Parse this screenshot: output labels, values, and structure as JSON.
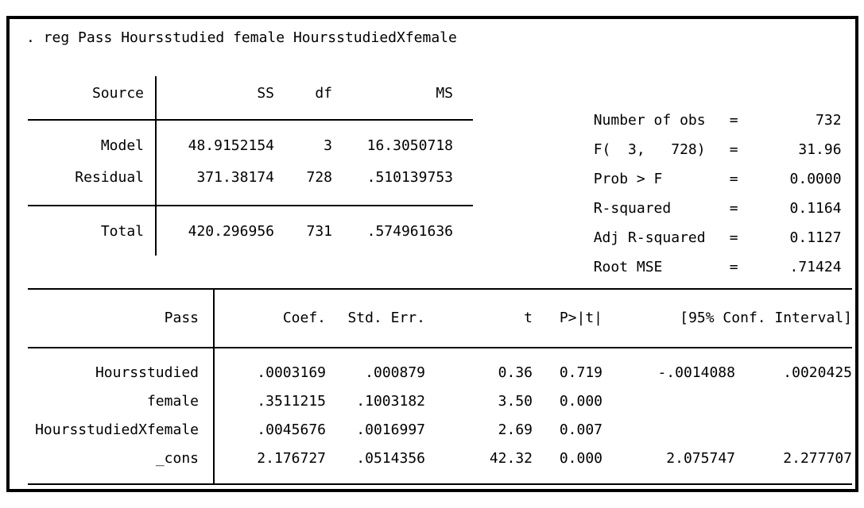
{
  "command": ". reg Pass Hoursstudied female HoursstudiedXfemale",
  "anova": {
    "headers": {
      "source": "Source",
      "ss": "SS",
      "df": "df",
      "ms": "MS"
    },
    "rows": [
      {
        "source": "Model",
        "ss": "48.9152154",
        "df": "3",
        "ms": "16.3050718"
      },
      {
        "source": "Residual",
        "ss": "371.38174",
        "df": "728",
        "ms": ".510139753"
      }
    ],
    "total": {
      "source": "Total",
      "ss": "420.296956",
      "df": "731",
      "ms": ".574961636"
    }
  },
  "stats": [
    {
      "label": "Number of obs",
      "eq": "=",
      "value": "732"
    },
    {
      "label": "F(  3,   728)",
      "eq": "=",
      "value": "31.96"
    },
    {
      "label": "Prob > F",
      "eq": "=",
      "value": "0.0000"
    },
    {
      "label": "R-squared",
      "eq": "=",
      "value": "0.1164"
    },
    {
      "label": "Adj R-squared",
      "eq": "=",
      "value": "0.1127"
    },
    {
      "label": "Root MSE",
      "eq": "=",
      "value": ".71424"
    }
  ],
  "coef_table": {
    "depvar": "Pass",
    "headers": {
      "coef": "Coef.",
      "stderr": "Std. Err.",
      "t": "t",
      "p": "P>|t|",
      "ci": "[95% Conf. Interval]"
    },
    "rows": [
      {
        "var": "Hoursstudied",
        "coef": ".0003169",
        "stderr": ".000879",
        "t": "0.36",
        "p": "0.719",
        "ci_low": "-.0014088",
        "ci_high": ".0020425"
      },
      {
        "var": "female",
        "coef": ".3511215",
        "stderr": ".1003182",
        "t": "3.50",
        "p": "0.000",
        "ci_low": "",
        "ci_high": ""
      },
      {
        "var": "HoursstudiedXfemale",
        "coef": ".0045676",
        "stderr": ".0016997",
        "t": "2.69",
        "p": "0.007",
        "ci_low": "",
        "ci_high": ""
      },
      {
        "var": "_cons",
        "coef": "2.176727",
        "stderr": ".0514356",
        "t": "42.32",
        "p": "0.000",
        "ci_low": "2.075747",
        "ci_high": "2.277707"
      }
    ]
  },
  "colors": {
    "text": "#000000",
    "border": "#000000",
    "background": "#ffffff"
  }
}
